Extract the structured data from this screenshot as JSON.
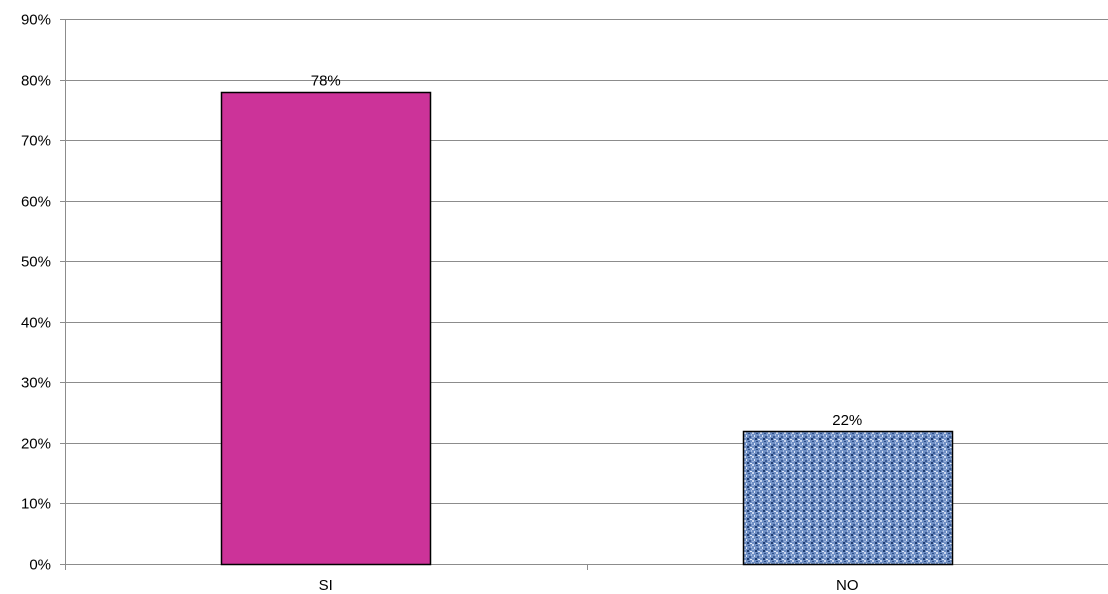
{
  "chart_data": {
    "type": "bar",
    "categories": [
      "SI",
      "NO"
    ],
    "values": [
      78,
      22
    ],
    "data_labels": [
      "78%",
      "22%"
    ],
    "ylim": [
      0,
      90
    ],
    "ytick_values": [
      0,
      10,
      20,
      30,
      40,
      50,
      60,
      70,
      80,
      90
    ],
    "ytick_labels": [
      "0%",
      "10%",
      "20%",
      "30%",
      "40%",
      "50%",
      "60%",
      "70%",
      "80%",
      "90%"
    ],
    "grid": true,
    "legend": false,
    "bar_colors": [
      "#cc3399",
      "#6f8fc4"
    ],
    "bar_fill_styles": [
      "solid",
      "textured"
    ]
  }
}
